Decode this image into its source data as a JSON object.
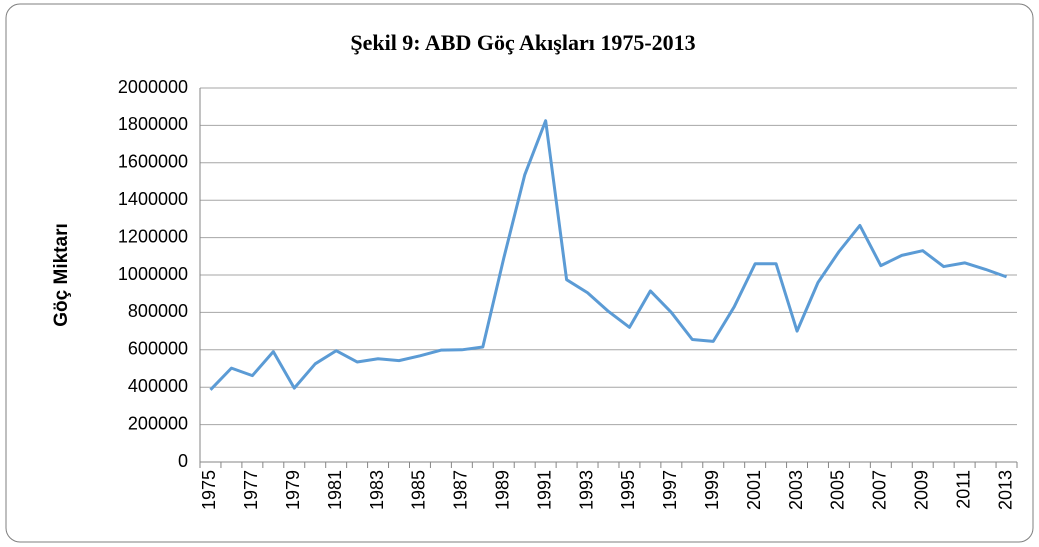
{
  "chart_data": {
    "type": "line",
    "title": "Şekil 9: ABD Göç Akışları 1975-2013",
    "y_label": "Göç Miktarı",
    "categories": [
      "1975",
      null,
      "1977",
      null,
      "1979",
      null,
      "1981",
      null,
      "1983",
      null,
      "1985",
      null,
      "1987",
      null,
      "1989",
      null,
      "1991",
      null,
      "1993",
      null,
      "1995",
      null,
      "1997",
      null,
      "1999",
      null,
      "2001",
      null,
      "2003",
      null,
      "2005",
      null,
      "2007",
      null,
      "2009",
      null,
      "2011",
      null,
      "2013"
    ],
    "series": [
      {
        "name": "Göç Miktarı",
        "color": "#5b9bd5",
        "values": [
          386000,
          502000,
          462000,
          590000,
          395000,
          525000,
          595000,
          535000,
          552000,
          542000,
          568000,
          598000,
          600000,
          615000,
          1090000,
          1535000,
          1825000,
          975000,
          905000,
          805000,
          720000,
          915000,
          800000,
          655000,
          645000,
          830000,
          1060000,
          1060000,
          700000,
          960000,
          1125000,
          1265000,
          1050000,
          1105000,
          1130000,
          1045000,
          1065000,
          1030000,
          990000
        ]
      }
    ],
    "ylim": [
      0,
      2000000
    ],
    "yticks": [
      0,
      200000,
      400000,
      600000,
      800000,
      1000000,
      1200000,
      1400000,
      1600000,
      1800000,
      2000000
    ],
    "grid": true
  }
}
